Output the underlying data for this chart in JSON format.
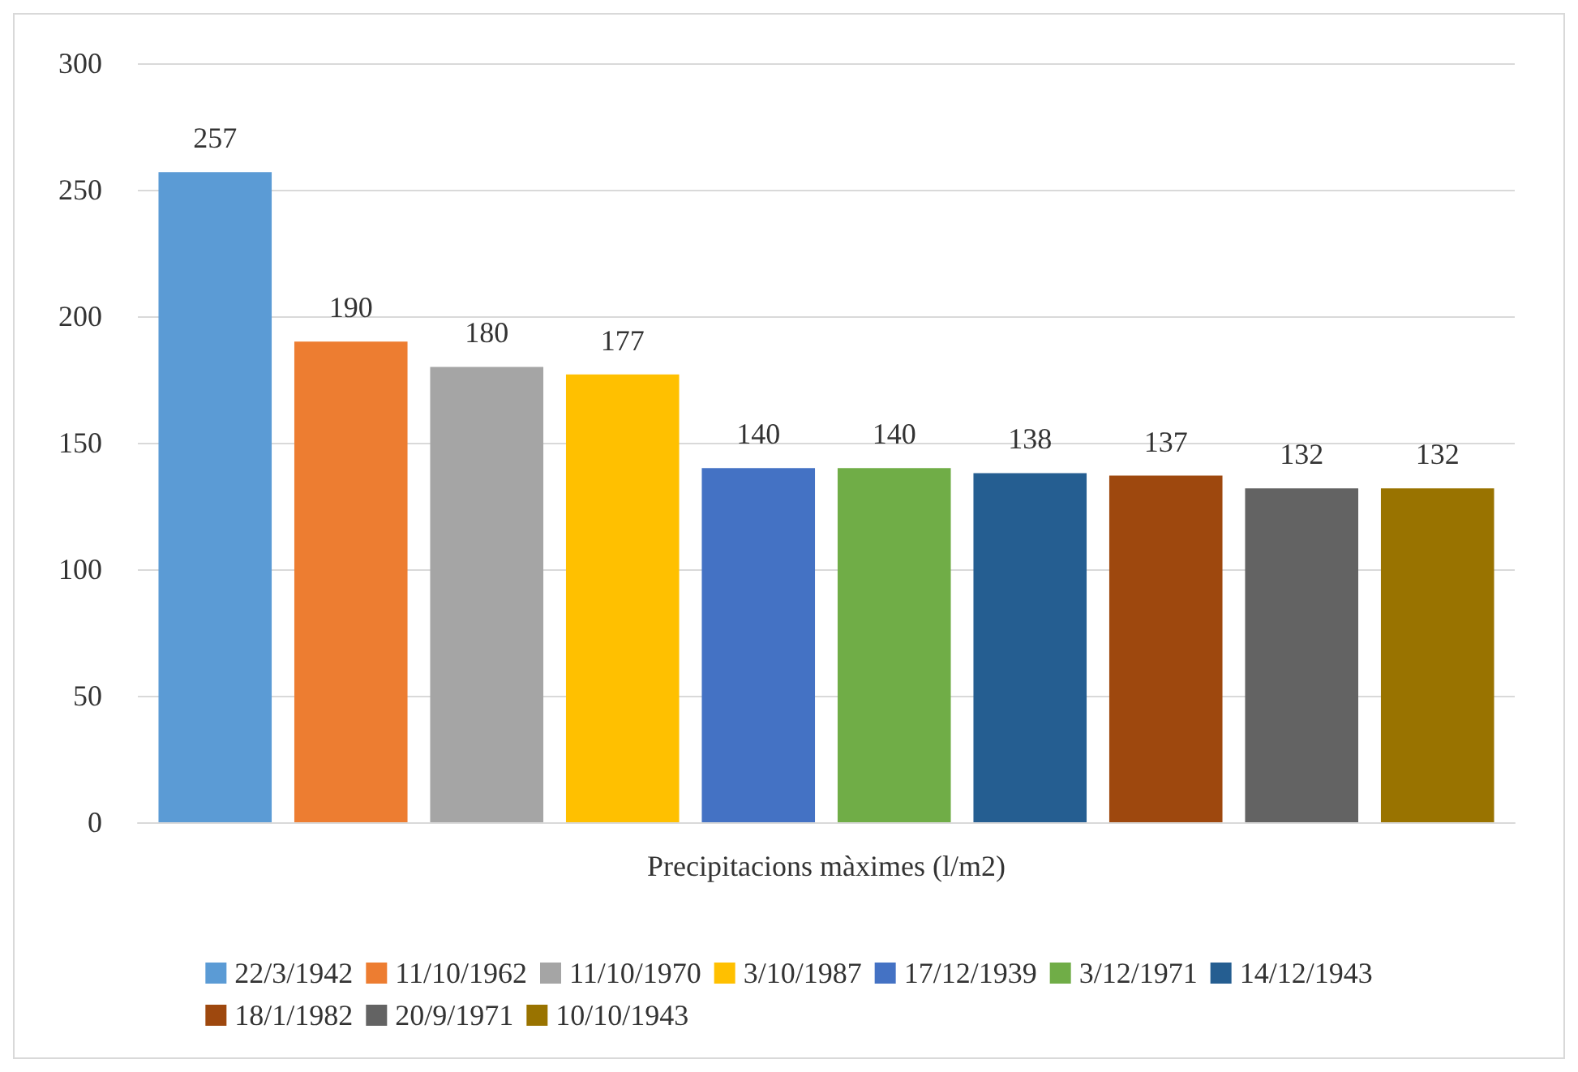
{
  "chart_data": {
    "type": "bar",
    "categories": [
      "Precipitacions màximes (l/m2)"
    ],
    "series": [
      {
        "name": "22/3/1942",
        "color": "#5b9bd5",
        "values": [
          257
        ]
      },
      {
        "name": "11/10/1962",
        "color": "#ed7d31",
        "values": [
          190
        ]
      },
      {
        "name": "11/10/1970",
        "color": "#a5a5a5",
        "values": [
          180
        ]
      },
      {
        "name": "3/10/1987",
        "color": "#ffc000",
        "values": [
          177
        ]
      },
      {
        "name": "17/12/1939",
        "color": "#4472c4",
        "values": [
          140
        ]
      },
      {
        "name": "3/12/1971",
        "color": "#70ad47",
        "values": [
          140
        ]
      },
      {
        "name": "14/12/1943",
        "color": "#255e91",
        "values": [
          138
        ]
      },
      {
        "name": "18/1/1982",
        "color": "#9e480e",
        "values": [
          137
        ]
      },
      {
        "name": "20/9/1971",
        "color": "#636363",
        "values": [
          132
        ]
      },
      {
        "name": "10/10/1943",
        "color": "#997300",
        "values": [
          132
        ]
      }
    ],
    "ylim": [
      0,
      300
    ],
    "yticks": [
      0,
      50,
      100,
      150,
      200,
      250,
      300
    ],
    "grid": "y",
    "data_labels": true,
    "legend": "bottom"
  }
}
